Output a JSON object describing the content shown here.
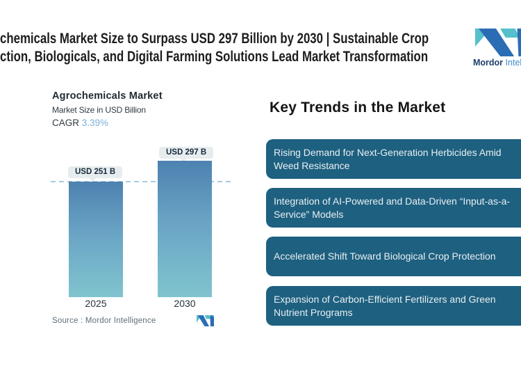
{
  "header": {
    "title_line1": "chemicals Market Size to Surpass USD 297 Billion by 2030 | Sustainable Crop",
    "title_line2": "ction, Biologicals, and Digital Farming Solutions Lead Market Transformation"
  },
  "brand": {
    "name_primary": "Mordor",
    "name_secondary": "Intelligence",
    "color_primary": "#1d3c69",
    "color_secondary": "#3e89c9",
    "logo_teal": "#54c0cb",
    "logo_blue": "#2b6db4"
  },
  "chart": {
    "title": "Agrochemicals Market",
    "subtitle": "Market Size in USD Billion",
    "cagr_label": "CAGR",
    "cagr_value": "3.39%",
    "cagr_value_color": "#7cb2d8",
    "bars": [
      {
        "year": "2025",
        "label": "USD 251 B"
      },
      {
        "year": "2030",
        "label": "USD 297 B"
      }
    ],
    "source_label": "Source :",
    "source_value": "Mordor Intelligence"
  },
  "trends": {
    "heading": "Key Trends in the Market",
    "box_color": "#1e6080",
    "items": [
      {
        "text": "Rising Demand for Next-Generation Herbicides Amid\nWeed Resistance"
      },
      {
        "text": "Integration of AI-Powered and Data-Driven “Input-as-a-\nService” Models"
      },
      {
        "text": "Accelerated Shift Toward Biological Crop Protection"
      },
      {
        "text": "Expansion of Carbon-Efficient Fertilizers and Green\nNutrient Programs"
      }
    ]
  },
  "chart_data": {
    "type": "bar",
    "title": "Agrochemicals Market",
    "ylabel": "Market Size in USD Billion",
    "categories": [
      "2025",
      "2030"
    ],
    "values": [
      251,
      297
    ],
    "data_labels": [
      "USD 251 B",
      "USD 297 B"
    ],
    "cagr_percent": 3.39,
    "ylim": [
      0,
      310
    ],
    "grid": false,
    "reference_line_y": 251,
    "bar_gradient": [
      "#4d82b0",
      "#80c4ce"
    ],
    "legend": "none",
    "source": "Mordor Intelligence"
  }
}
